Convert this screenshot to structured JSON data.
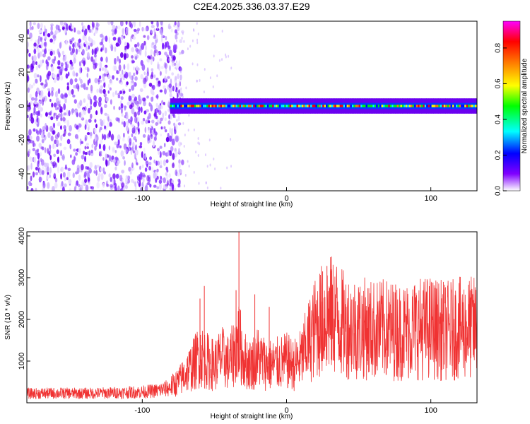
{
  "title": "C2E4.2025.336.03.37.E29",
  "chart_data": [
    {
      "type": "heatmap",
      "xlabel": "Height of straight line (km)",
      "ylabel": "Frequency (Hz)",
      "xlim": [
        -180,
        132
      ],
      "ylim": [
        -50,
        50
      ],
      "xticks": [
        -100,
        0,
        100
      ],
      "yticks": [
        -40,
        -20,
        0,
        20,
        40
      ],
      "grid": false,
      "description": {
        "noise_region_x": [
          -180,
          -80
        ],
        "signal_start_x": -80,
        "signal_center_frequency": 0,
        "signal_band_halfwidth_hz": 3,
        "amplitude_peak": 0.95
      },
      "colorbar": {
        "label": "Normalized spectral amplitude",
        "range": [
          0,
          0.95
        ],
        "ticks": [
          0.0,
          0.2,
          0.4,
          0.6,
          0.8
        ],
        "tick_labels": [
          "0.0",
          "0.2",
          "0.4",
          "0.6",
          "0.8"
        ],
        "colors": [
          "#ffffff",
          "#8000ff",
          "#0000ff",
          "#00ffff",
          "#00ff00",
          "#ffff00",
          "#ff8000",
          "#ff0000",
          "#ff00ff"
        ]
      }
    },
    {
      "type": "line",
      "xlabel": "Height of straight line (km)",
      "ylabel": "SNR (10 * v/v)",
      "xlim": [
        -180,
        132
      ],
      "ylim": [
        0,
        4100
      ],
      "xticks": [
        -100,
        0,
        100
      ],
      "yticks": [
        1000,
        2000,
        3000,
        4000
      ],
      "grid": false,
      "series": [
        {
          "color": "#f03232",
          "x": [
            -180,
            -160,
            -140,
            -120,
            -100,
            -90,
            -82,
            -75,
            -70,
            -65,
            -60,
            -55,
            -50,
            -45,
            -40,
            -35,
            -33,
            -30,
            -25,
            -20,
            -15,
            -10,
            -5,
            0,
            5,
            10,
            15,
            20,
            25,
            30,
            35,
            40,
            50,
            60,
            70,
            80,
            90,
            100,
            110,
            120,
            132
          ],
          "y": [
            220,
            230,
            225,
            240,
            260,
            290,
            350,
            500,
            700,
            900,
            1150,
            1000,
            900,
            1100,
            950,
            1300,
            1500,
            1050,
            900,
            1100,
            950,
            900,
            950,
            1000,
            900,
            1050,
            1450,
            1800,
            2000,
            2100,
            2050,
            1850,
            1800,
            1750,
            1750,
            1700,
            1780,
            1800,
            1720,
            1780,
            1800
          ]
        }
      ],
      "spikes": {
        "x": [
          -60,
          -57,
          -35,
          -33,
          -22,
          -12,
          25,
          28,
          31
        ],
        "y": [
          2500,
          2800,
          2700,
          4100,
          2600,
          2300,
          3150,
          3280,
          3200
        ]
      }
    }
  ]
}
